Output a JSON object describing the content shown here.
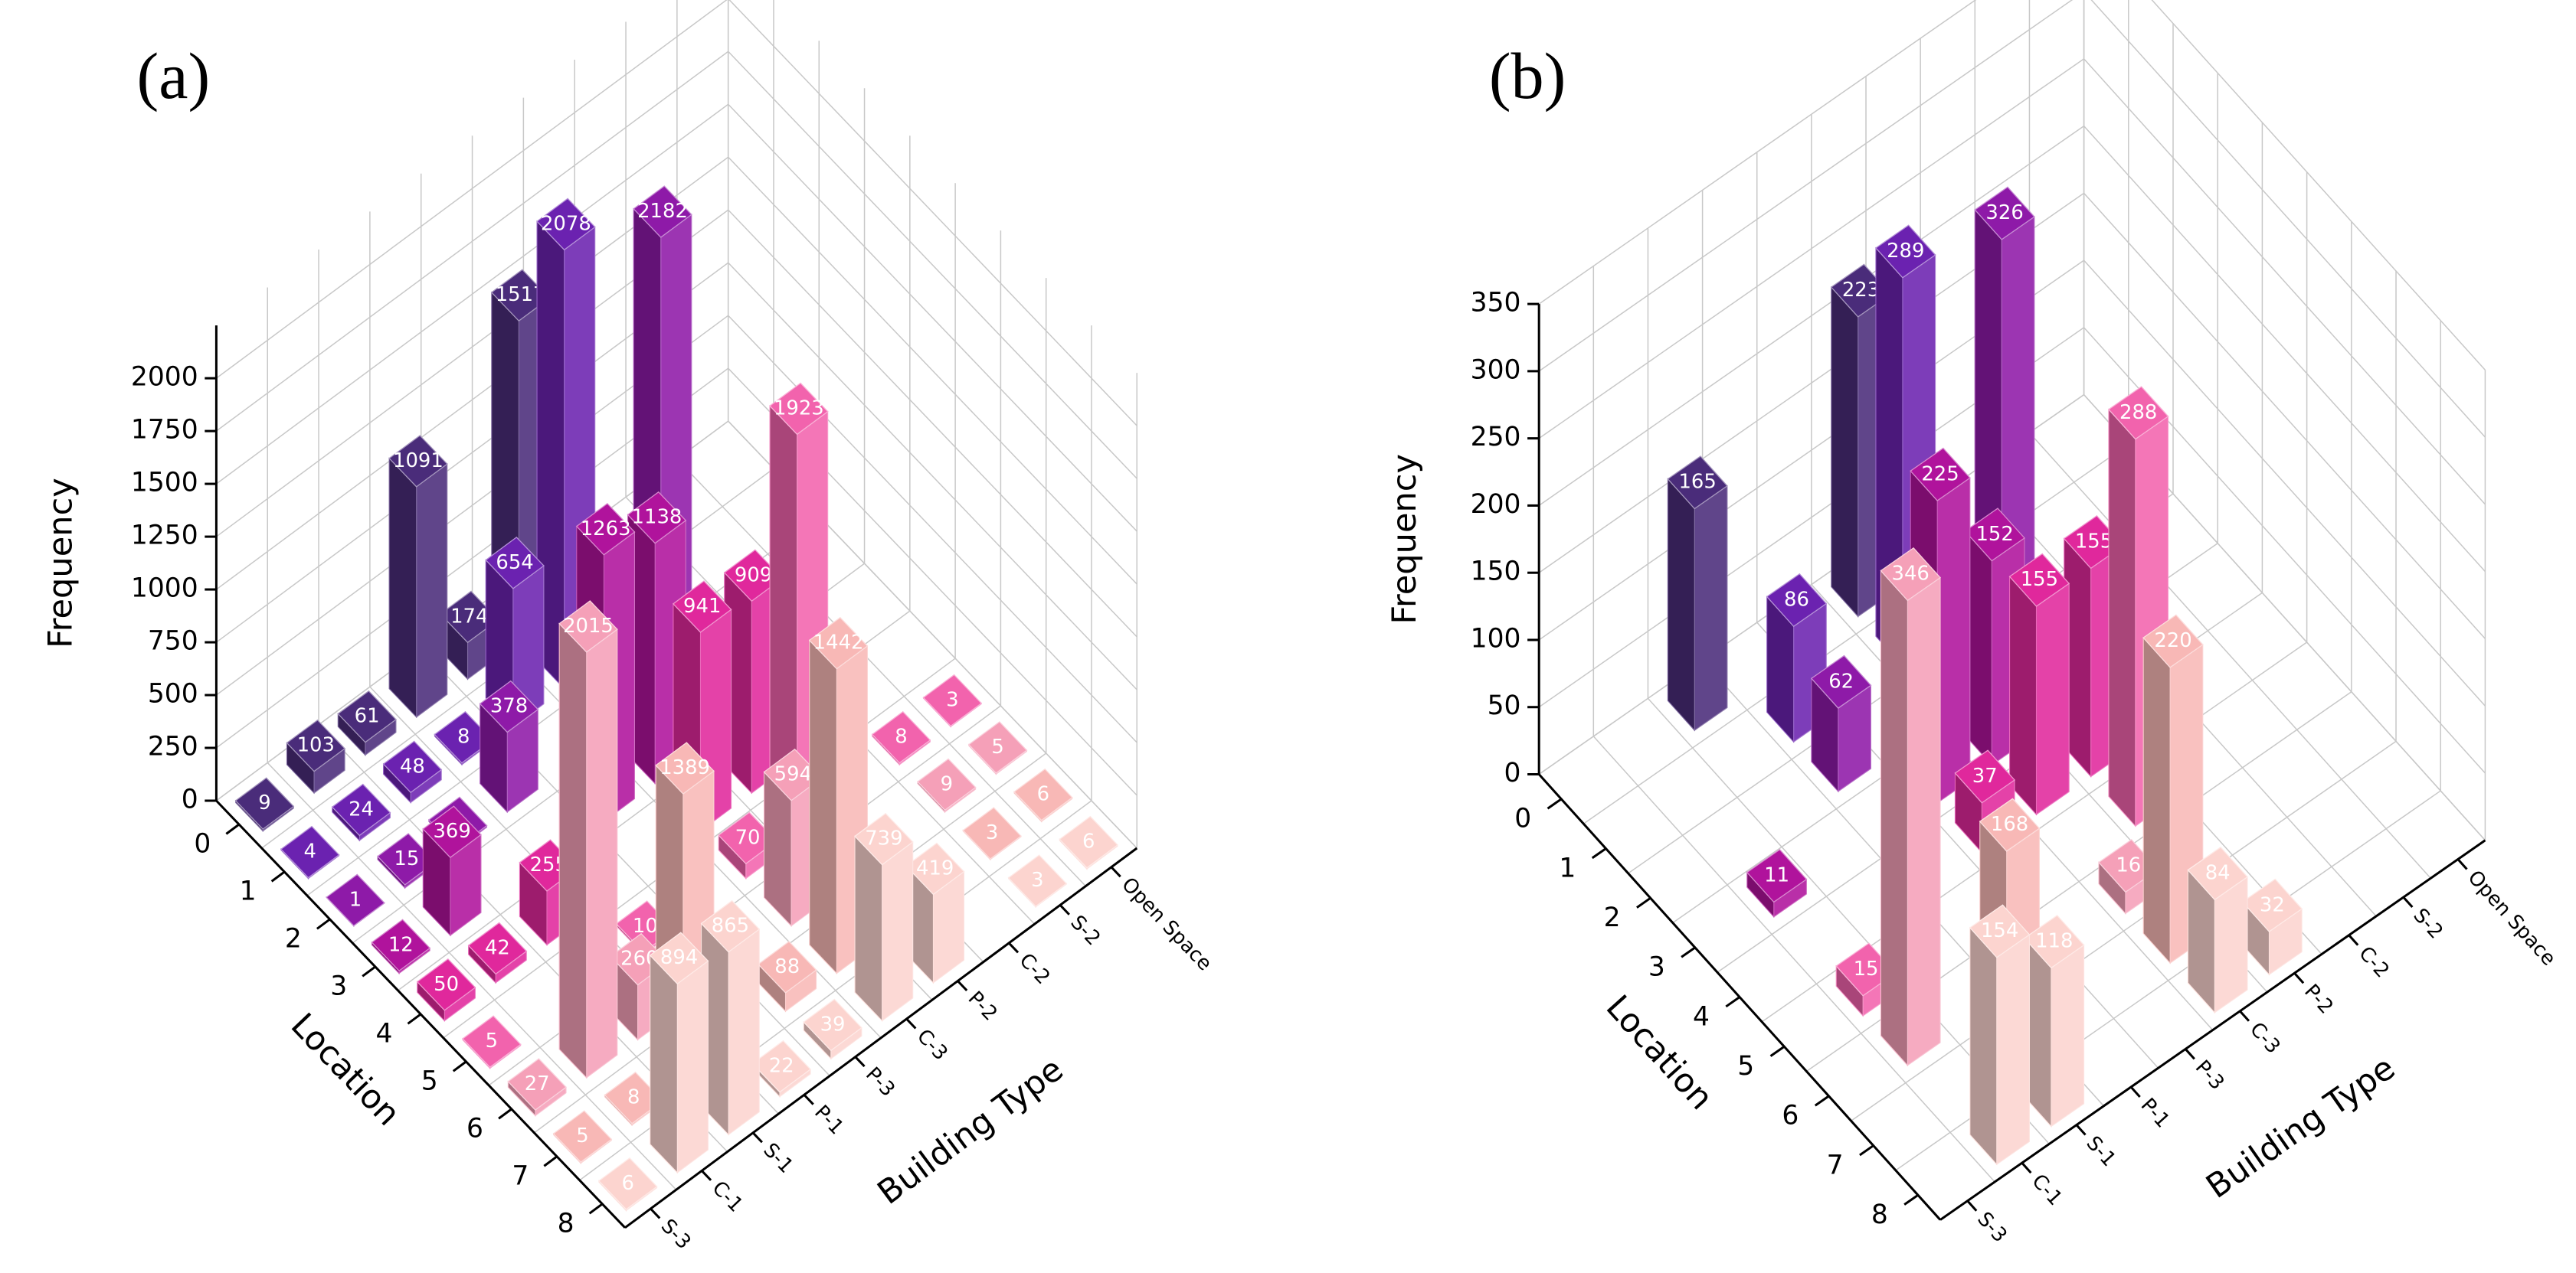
{
  "chart_data": [
    {
      "type": "bar3d",
      "title": "(a)",
      "x_label": "Location",
      "y_label": "Building Type",
      "z_label": "Frequency",
      "x_categories": [
        0,
        1,
        2,
        3,
        4,
        5,
        6,
        7,
        8
      ],
      "y_categories": [
        "S-3",
        "C-1",
        "S-1",
        "P-1",
        "P-3",
        "C-3",
        "P-2",
        "C-2",
        "S-2",
        "Open Space"
      ],
      "values": [
        [
          9,
          103,
          61,
          1091,
          174,
          1517,
          null,
          null,
          null,
          null
        ],
        [
          4,
          24,
          48,
          8,
          654,
          2078,
          null,
          null,
          null,
          null
        ],
        [
          1,
          15,
          8,
          378,
          null,
          null,
          2182,
          null,
          null,
          null
        ],
        [
          12,
          369,
          null,
          null,
          1263,
          1138,
          null,
          null,
          null,
          null
        ],
        [
          50,
          42,
          255,
          null,
          null,
          941,
          909,
          null,
          null,
          null
        ],
        [
          5,
          null,
          null,
          10,
          null,
          70,
          1923,
          null,
          8,
          3
        ],
        [
          27,
          2015,
          260,
          null,
          null,
          594,
          null,
          null,
          9,
          5
        ],
        [
          5,
          8,
          1389,
          null,
          88,
          1442,
          null,
          null,
          3,
          6
        ],
        [
          6,
          894,
          865,
          22,
          39,
          739,
          419,
          null,
          3,
          6
        ]
      ],
      "colors": [
        "#4a2c7a",
        "#6b22b0",
        "#8e1aa8",
        "#b0139c",
        "#e0289c",
        "#f263ad",
        "#f5a0b8",
        "#f8b8b6",
        "#fcd4cf"
      ],
      "zlim": [
        0,
        2250
      ],
      "zticks": [
        0,
        250,
        500,
        750,
        1000,
        1250,
        1500,
        1750,
        2000
      ],
      "grid": true
    },
    {
      "type": "bar3d",
      "title": "(b)",
      "x_label": "Location",
      "y_label": "Building Type",
      "z_label": "Frequency",
      "x_categories": [
        0,
        1,
        2,
        3,
        4,
        5,
        6,
        7,
        8
      ],
      "y_categories": [
        "S-3",
        "C-1",
        "S-1",
        "P-1",
        "P-3",
        "C-3",
        "P-2",
        "C-2",
        "S-2",
        "Open Space"
      ],
      "values": [
        [
          null,
          null,
          165,
          null,
          null,
          223,
          null,
          null,
          null,
          null
        ],
        [
          null,
          null,
          null,
          86,
          null,
          289,
          null,
          null,
          null,
          null
        ],
        [
          null,
          null,
          null,
          62,
          null,
          null,
          326,
          null,
          null,
          null
        ],
        [
          null,
          11,
          null,
          null,
          225,
          152,
          null,
          null,
          null,
          null
        ],
        [
          null,
          null,
          null,
          null,
          37,
          155,
          155,
          null,
          null,
          null
        ],
        [
          null,
          15,
          null,
          null,
          null,
          null,
          288,
          null,
          null,
          null
        ],
        [
          null,
          346,
          null,
          null,
          null,
          16,
          null,
          null,
          null,
          null
        ],
        [
          null,
          null,
          168,
          null,
          null,
          220,
          null,
          null,
          null,
          null
        ],
        [
          null,
          154,
          118,
          null,
          null,
          84,
          32,
          null,
          null,
          null
        ]
      ],
      "colors": [
        "#4a2c7a",
        "#6b22b0",
        "#8e1aa8",
        "#b0139c",
        "#e0289c",
        "#f263ad",
        "#f5a0b8",
        "#f8b8b6",
        "#fcd4cf"
      ],
      "zlim": [
        0,
        350
      ],
      "zticks": [
        0,
        50,
        100,
        150,
        200,
        250,
        300,
        350
      ],
      "grid": true
    }
  ]
}
